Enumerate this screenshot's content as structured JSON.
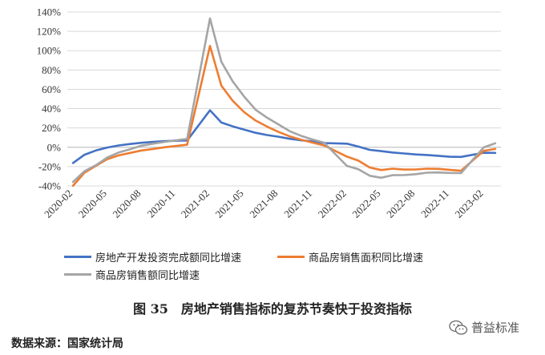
{
  "chart_data": {
    "type": "line",
    "x": [
      "2020-02",
      "2020-03",
      "2020-04",
      "2020-05",
      "2020-06",
      "2020-07",
      "2020-08",
      "2020-09",
      "2020-10",
      "2020-11",
      "2020-12",
      "2021-02",
      "2021-03",
      "2021-04",
      "2021-05",
      "2021-06",
      "2021-07",
      "2021-08",
      "2021-09",
      "2021-10",
      "2021-11",
      "2021-12",
      "2022-02",
      "2022-03",
      "2022-04",
      "2022-05",
      "2022-06",
      "2022-07",
      "2022-08",
      "2022-09",
      "2022-10",
      "2022-11",
      "2022-12",
      "2023-02",
      "2023-03"
    ],
    "xticks": [
      "2020-02",
      "2020-05",
      "2020-08",
      "2020-11",
      "2021-02",
      "2021-05",
      "2021-08",
      "2021-11",
      "2022-02",
      "2022-05",
      "2022-08",
      "2022-11",
      "2023-02"
    ],
    "yticks": [
      "-40%",
      "-20%",
      "0%",
      "20%",
      "40%",
      "60%",
      "80%",
      "100%",
      "120%",
      "140%"
    ],
    "ylim": [
      -40,
      140
    ],
    "series": [
      {
        "name": "房地产开发投资完成额同比增速",
        "color": "#4472C4",
        "values": [
          -16.3,
          -7.7,
          -3.3,
          -0.3,
          1.9,
          3.4,
          4.6,
          5.6,
          6.3,
          6.8,
          7.0,
          38.3,
          25.6,
          21.6,
          18.3,
          15.0,
          12.7,
          10.9,
          8.8,
          7.2,
          6.0,
          4.4,
          3.7,
          0.7,
          -2.7,
          -4.0,
          -5.4,
          -6.4,
          -7.4,
          -8.0,
          -8.8,
          -9.8,
          -10.0,
          -5.7,
          -5.8
        ]
      },
      {
        "name": "商品房销售面积同比增速",
        "color": "#ED7D31",
        "values": [
          -39.9,
          -26.3,
          -19.3,
          -12.3,
          -8.4,
          -5.8,
          -3.3,
          -1.8,
          0.0,
          1.3,
          2.6,
          104.9,
          63.8,
          48.1,
          36.3,
          27.7,
          21.5,
          15.9,
          11.3,
          7.8,
          4.8,
          1.9,
          -9.6,
          -13.8,
          -20.9,
          -23.6,
          -22.2,
          -23.1,
          -23.0,
          -22.2,
          -22.3,
          -23.3,
          -24.3,
          -3.6,
          -1.8
        ]
      },
      {
        "name": "商品房销售额同比增速",
        "color": "#A5A5A5",
        "values": [
          -35.9,
          -24.7,
          -18.6,
          -10.6,
          -5.4,
          -2.1,
          1.6,
          3.7,
          5.5,
          7.2,
          8.7,
          133.4,
          88.5,
          68.2,
          52.4,
          38.9,
          30.7,
          23.6,
          16.6,
          11.8,
          8.0,
          4.8,
          -19.3,
          -22.7,
          -29.5,
          -31.5,
          -28.9,
          -28.8,
          -27.9,
          -26.3,
          -26.1,
          -26.6,
          -26.7,
          -0.1,
          4.1
        ]
      }
    ],
    "legend": "bottom"
  },
  "caption": "图 35　房地产销售指标的复苏节奏快于投资指标",
  "source": "数据来源：国家统计局",
  "watermark": "普益标准",
  "watermark_icon": "wechat-icon"
}
